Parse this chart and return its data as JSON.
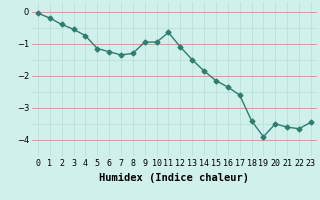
{
  "x": [
    0,
    1,
    2,
    3,
    4,
    5,
    6,
    7,
    8,
    9,
    10,
    11,
    12,
    13,
    14,
    15,
    16,
    17,
    18,
    19,
    20,
    21,
    22,
    23
  ],
  "y": [
    -0.05,
    -0.2,
    -0.4,
    -0.55,
    -0.75,
    -1.15,
    -1.25,
    -1.35,
    -1.3,
    -0.95,
    -0.95,
    -0.65,
    -1.1,
    -1.5,
    -1.85,
    -2.15,
    -2.35,
    -2.6,
    -3.4,
    -3.9,
    -3.5,
    -3.6,
    -3.65,
    -3.45
  ],
  "line_color": "#2e7d6e",
  "marker": "D",
  "marker_size": 2.5,
  "line_width": 1.0,
  "bg_color": "#d0f0ec",
  "grid_color_v": "#b8ddd8",
  "grid_color_h": "#d09090",
  "xlabel": "Humidex (Indice chaleur)",
  "ylim": [
    -4.5,
    0.3
  ],
  "xlim": [
    -0.5,
    23.5
  ],
  "yticks": [
    0,
    -1,
    -2,
    -3,
    -4
  ],
  "xtick_labels": [
    "0",
    "1",
    "2",
    "3",
    "4",
    "5",
    "6",
    "7",
    "8",
    "9",
    "10",
    "11",
    "12",
    "13",
    "14",
    "15",
    "16",
    "17",
    "18",
    "19",
    "20",
    "21",
    "22",
    "23"
  ],
  "tick_fontsize": 6,
  "xlabel_fontsize": 7.5
}
